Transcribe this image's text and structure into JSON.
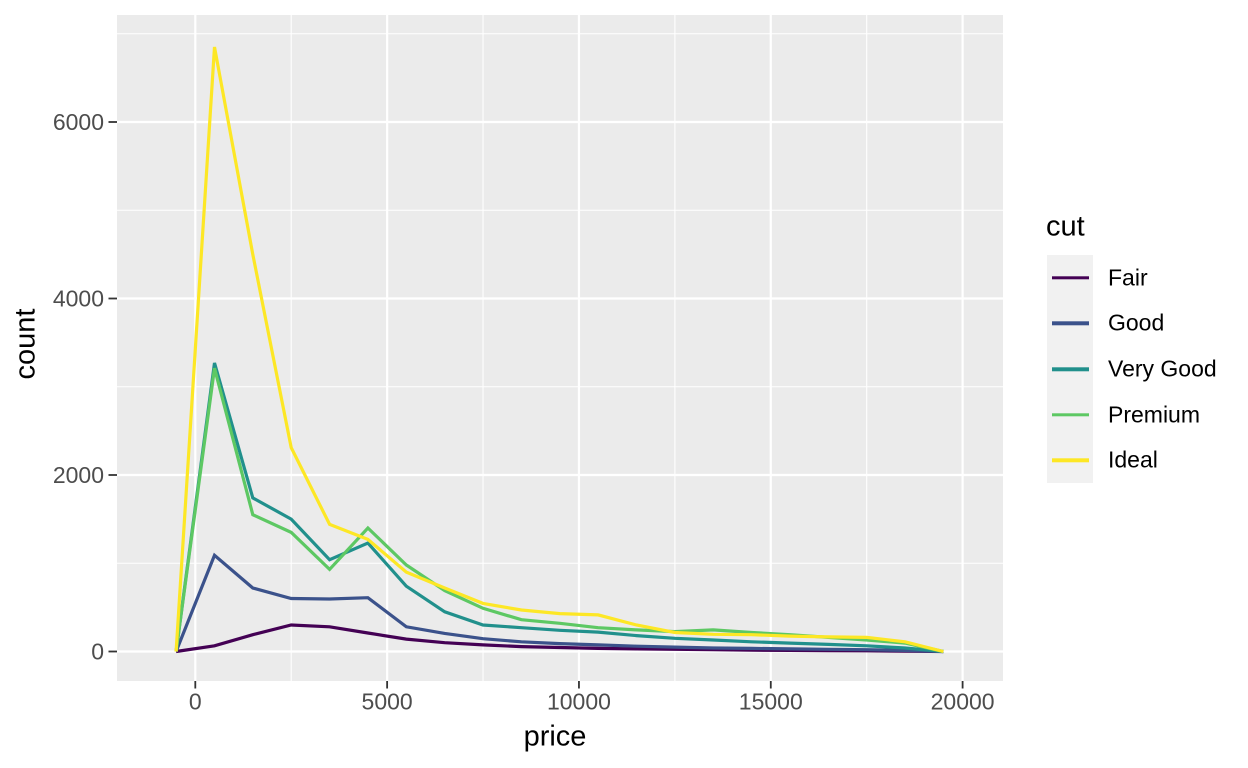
{
  "chart_data": {
    "type": "line",
    "subtype": "freqpoly",
    "title": "",
    "xlabel": "price",
    "ylabel": "count",
    "legend_title": "cut",
    "legend_position": "right",
    "grid": true,
    "x_bin_centers": [
      -500,
      500,
      1500,
      2500,
      3500,
      4500,
      5500,
      6500,
      7500,
      8500,
      9500,
      10500,
      11500,
      12500,
      13500,
      14500,
      15500,
      16500,
      17500,
      18500,
      19500
    ],
    "series": [
      {
        "name": "Fair",
        "color": "#440154",
        "values": [
          0,
          65,
          190,
          300,
          280,
          210,
          140,
          100,
          75,
          55,
          45,
          35,
          30,
          25,
          20,
          15,
          12,
          10,
          8,
          5,
          0
        ]
      },
      {
        "name": "Good",
        "color": "#3B528B",
        "values": [
          0,
          1090,
          720,
          600,
          595,
          610,
          280,
          205,
          145,
          110,
          90,
          75,
          60,
          50,
          40,
          35,
          30,
          25,
          20,
          12,
          0
        ]
      },
      {
        "name": "Very Good",
        "color": "#21908C",
        "values": [
          0,
          3270,
          1740,
          1500,
          1040,
          1230,
          740,
          450,
          300,
          270,
          240,
          220,
          180,
          150,
          130,
          110,
          95,
          80,
          65,
          40,
          0
        ]
      },
      {
        "name": "Premium",
        "color": "#5DC863",
        "values": [
          0,
          3210,
          1550,
          1350,
          930,
          1400,
          980,
          690,
          490,
          360,
          320,
          270,
          245,
          225,
          245,
          215,
          190,
          160,
          130,
          95,
          0
        ]
      },
      {
        "name": "Ideal",
        "color": "#FDE725",
        "values": [
          0,
          6850,
          4500,
          2310,
          1440,
          1270,
          900,
          720,
          545,
          470,
          430,
          415,
          300,
          215,
          195,
          190,
          175,
          165,
          160,
          110,
          0
        ]
      }
    ],
    "x_axis": {
      "major_ticks": [
        0,
        5000,
        10000,
        15000,
        20000
      ],
      "major_tick_labels": [
        "0",
        "5000",
        "10000",
        "15000",
        "20000"
      ],
      "minor_ticks": [
        2500,
        7500,
        12500,
        17500
      ]
    },
    "y_axis": {
      "major_ticks": [
        0,
        2000,
        4000,
        6000
      ],
      "major_tick_labels": [
        "0",
        "2000",
        "4000",
        "6000"
      ],
      "minor_ticks": [
        1000,
        3000,
        5000,
        7000
      ],
      "ylim": [
        0,
        6900
      ]
    },
    "theme": {
      "panel_background": "#EBEBEB",
      "grid_color": "#FFFFFF",
      "tick_color": "#333333",
      "tick_label_color": "#4D4D4D",
      "title_color": "#000000",
      "legend_key_background": "#F1F1F1"
    }
  }
}
